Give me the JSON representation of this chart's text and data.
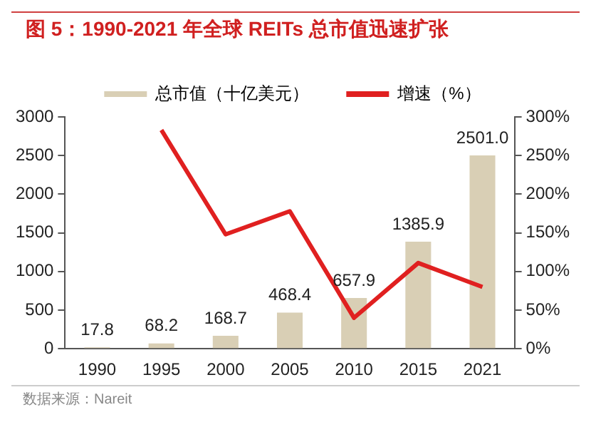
{
  "chart_data": {
    "type": "bar",
    "title": "图 5：1990-2021 年全球 REITs 总市值迅速扩张",
    "categories": [
      "1990",
      "1995",
      "2000",
      "2005",
      "2010",
      "2015",
      "2021"
    ],
    "series": [
      {
        "name": "总市值（十亿美元）",
        "color": "#d9cfb5",
        "values": [
          17.8,
          68.2,
          168.7,
          468.4,
          657.9,
          1385.9,
          2501.0
        ],
        "value_labels": [
          "17.8",
          "68.2",
          "168.7",
          "468.4",
          "657.9",
          "1385.9",
          "2501.0"
        ]
      },
      {
        "name": "增速（%）",
        "type": "line",
        "axis": "y2",
        "color": "#e02020",
        "values": [
          null,
          283,
          148,
          178,
          40,
          111,
          80
        ]
      }
    ],
    "ylim": [
      0,
      3000
    ],
    "yticks": [
      0,
      500,
      1000,
      1500,
      2000,
      2500,
      3000
    ],
    "y2lim": [
      0,
      300
    ],
    "y2ticks": [
      {
        "value": 0,
        "label": "0%"
      },
      {
        "value": 50,
        "label": "50%"
      },
      {
        "value": 100,
        "label": "100%"
      },
      {
        "value": 150,
        "label": "150%"
      },
      {
        "value": 200,
        "label": "200%"
      },
      {
        "value": 250,
        "label": "250%"
      },
      {
        "value": 300,
        "label": "300%"
      }
    ],
    "legend": "top",
    "grid": false,
    "marker": "none",
    "line_style": "solid",
    "annotations": [
      "数据来源：Nareit"
    ]
  }
}
